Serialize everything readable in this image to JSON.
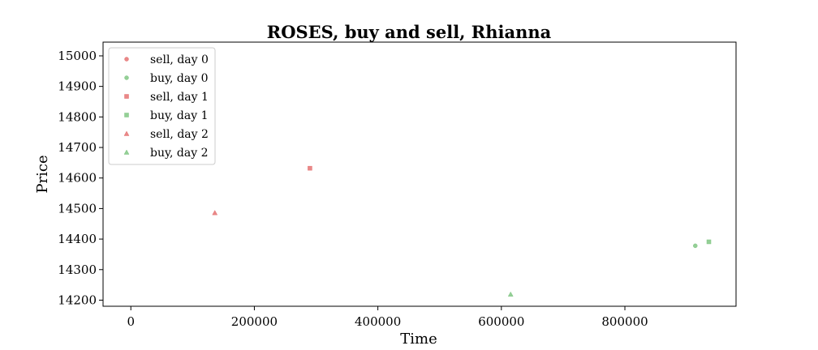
{
  "chart_data": {
    "type": "scatter",
    "title": "ROSES, buy and sell, Rhianna",
    "xlabel": "Time",
    "ylabel": "Price",
    "xlim": [
      -45000,
      980000
    ],
    "ylim": [
      14180,
      15045
    ],
    "xticks": [
      0,
      200000,
      400000,
      600000,
      800000
    ],
    "yticks": [
      14200,
      14300,
      14400,
      14500,
      14600,
      14700,
      14800,
      14900,
      15000
    ],
    "grid": false,
    "legend_position": "top-left",
    "colors": {
      "sell": "#e57373",
      "buy": "#81c784"
    },
    "series": [
      {
        "name": "sell, day 0",
        "side": "sell",
        "marker": "circle",
        "points": [
          {
            "x": 0,
            "y": 15000
          }
        ]
      },
      {
        "name": "buy, day 0",
        "side": "buy",
        "marker": "circle",
        "points": [
          {
            "x": 914000,
            "y": 14378
          }
        ]
      },
      {
        "name": "sell, day 1",
        "side": "sell",
        "marker": "square",
        "points": [
          {
            "x": 290000,
            "y": 14632
          }
        ]
      },
      {
        "name": "buy, day 1",
        "side": "buy",
        "marker": "square",
        "points": [
          {
            "x": 936000,
            "y": 14391
          }
        ]
      },
      {
        "name": "sell, day 2",
        "side": "sell",
        "marker": "triangle",
        "points": [
          {
            "x": 136000,
            "y": 14486
          }
        ]
      },
      {
        "name": "buy, day 2",
        "side": "buy",
        "marker": "triangle",
        "points": [
          {
            "x": 615000,
            "y": 14219
          }
        ]
      }
    ]
  }
}
